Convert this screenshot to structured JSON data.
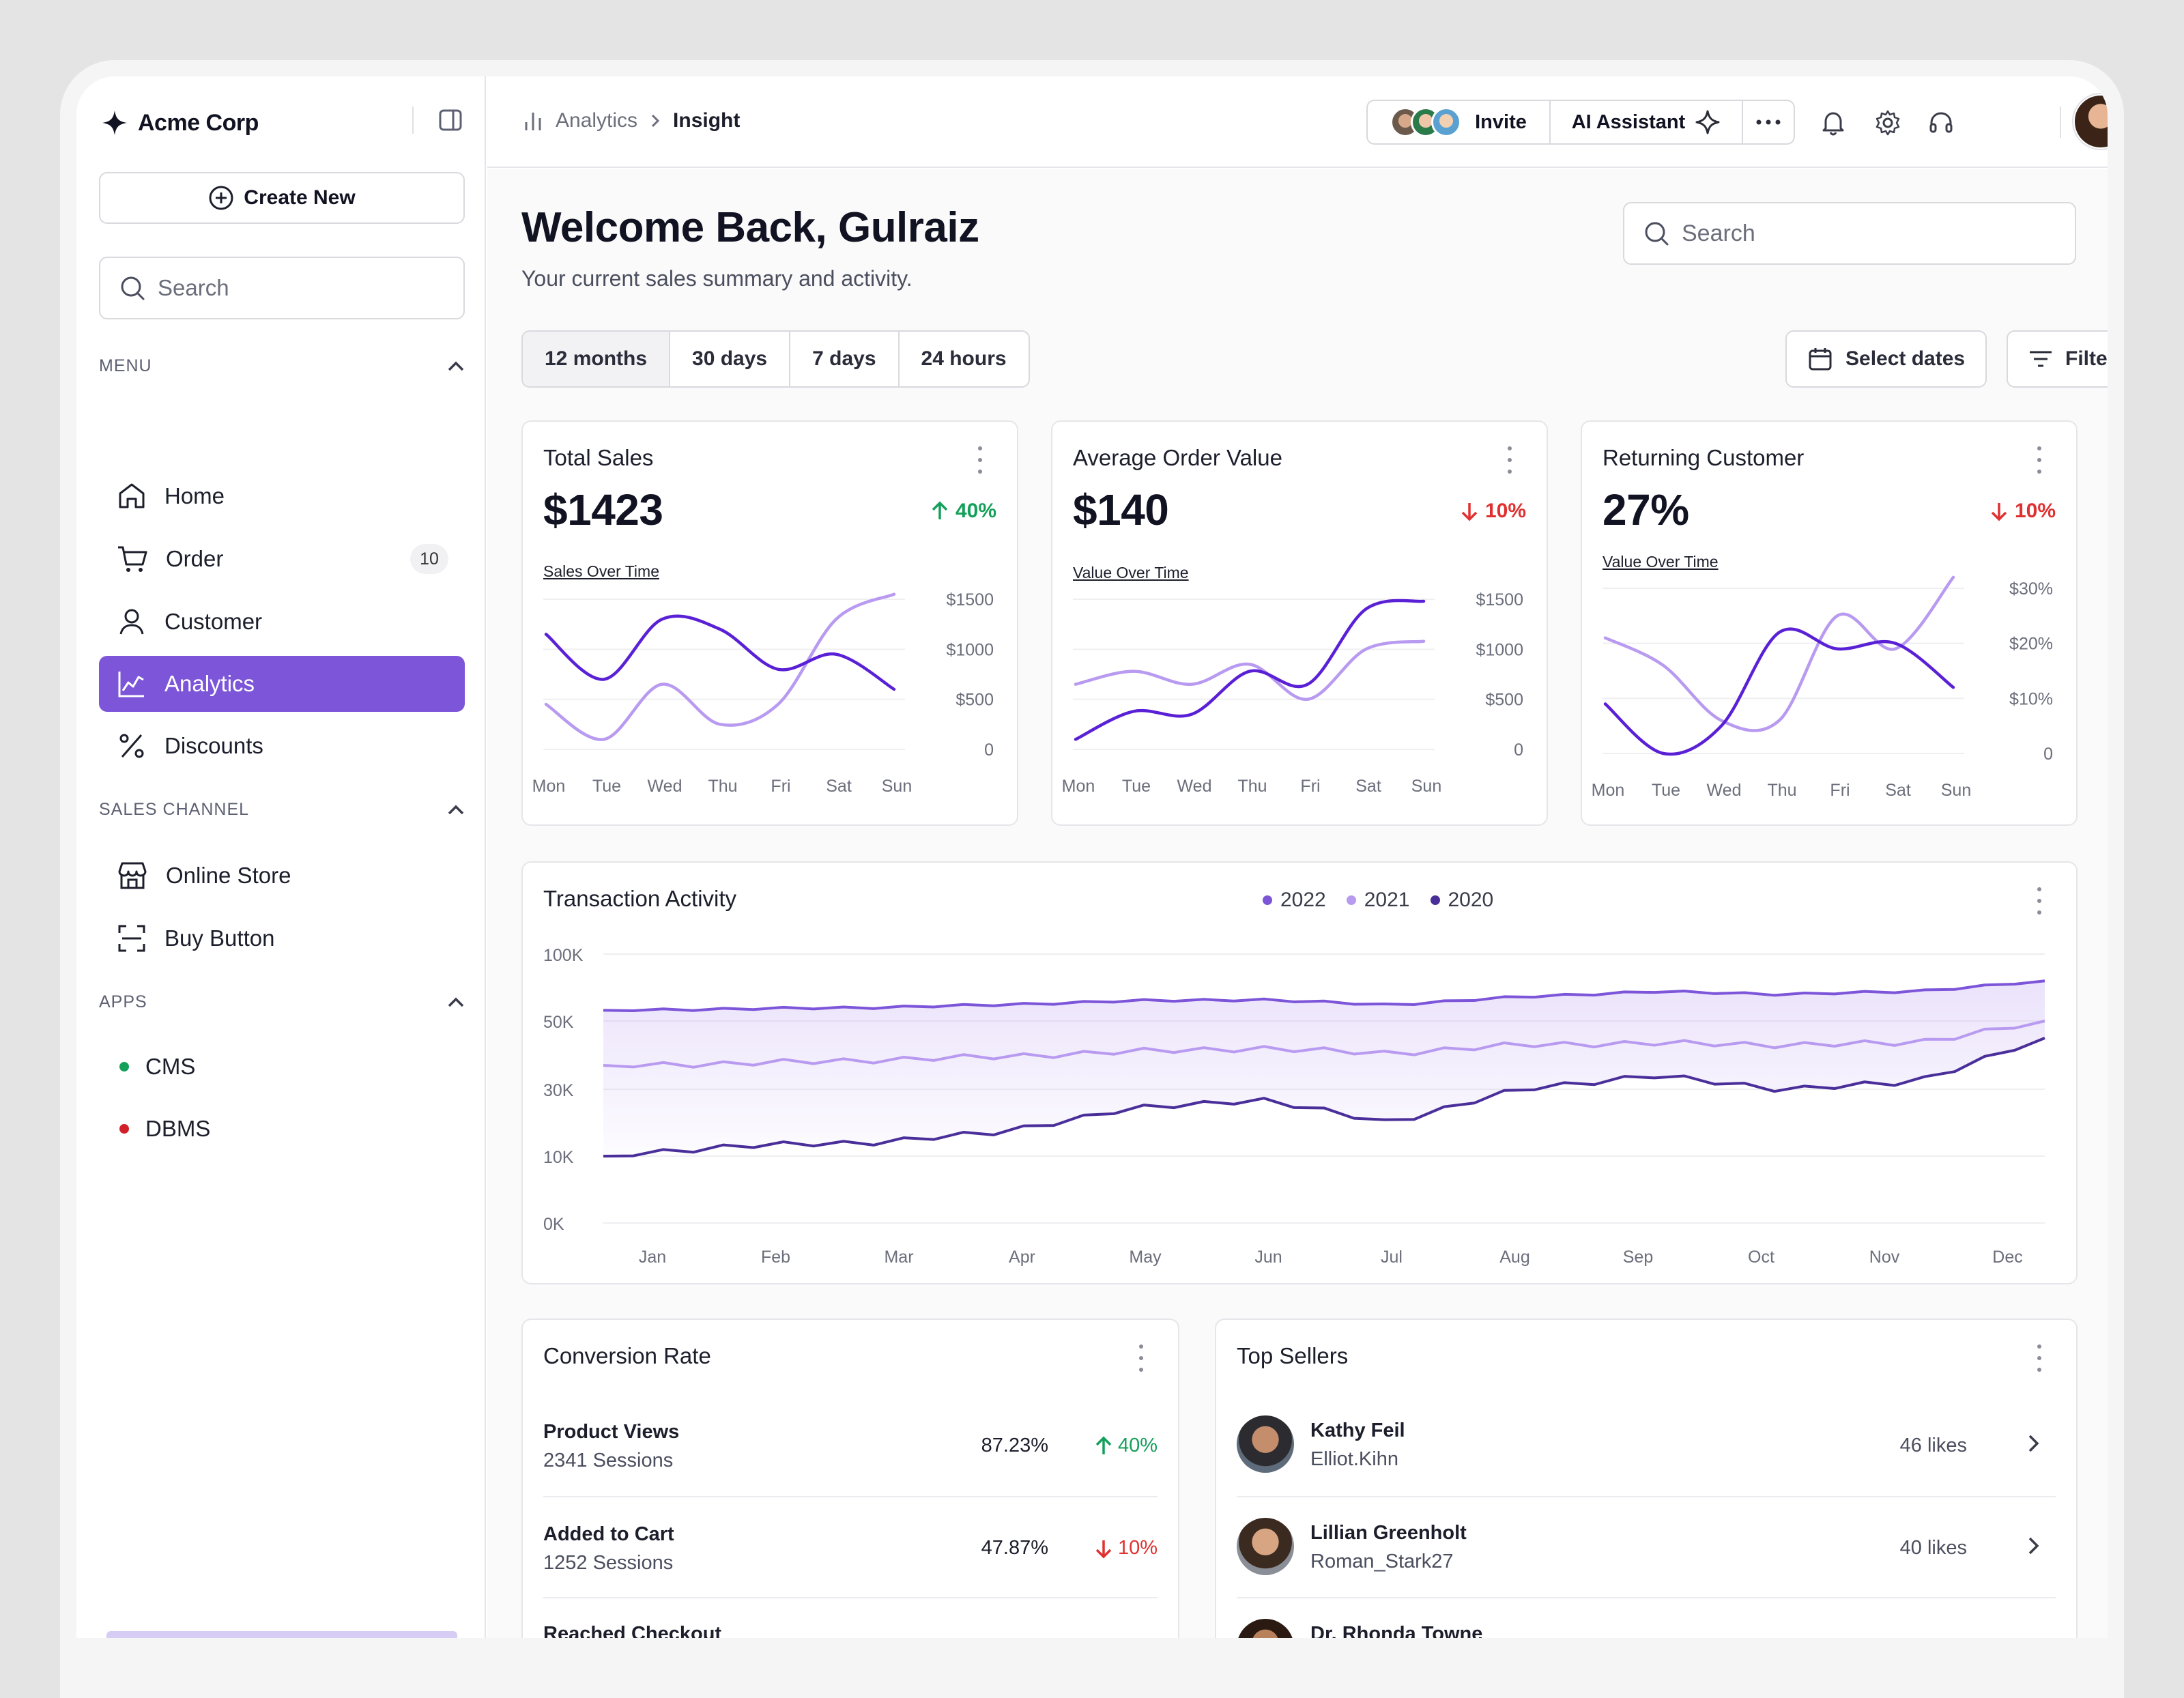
{
  "brand": {
    "name": "Acme Corp"
  },
  "sidebar": {
    "create_label": "Create New",
    "search_placeholder": "Search",
    "menu_label": "MENU",
    "menu_items": [
      {
        "label": "Home",
        "icon": "home-icon"
      },
      {
        "label": "Order",
        "icon": "cart-icon",
        "badge": "10"
      },
      {
        "label": "Customer",
        "icon": "user-icon"
      },
      {
        "label": "Analytics",
        "icon": "chart-line-icon",
        "active": true
      },
      {
        "label": "Discounts",
        "icon": "percent-icon"
      }
    ],
    "sales_channel_label": "SALES CHANNEL",
    "sales_items": [
      {
        "label": "Online Store",
        "icon": "store-icon"
      },
      {
        "label": "Buy Button",
        "icon": "scan-icon"
      }
    ],
    "apps_label": "APPS",
    "apps": [
      {
        "label": "CMS",
        "color": "#14a05a"
      },
      {
        "label": "DBMS",
        "color": "#d0202a"
      }
    ]
  },
  "topbar": {
    "breadcrumb": [
      "Analytics",
      "Insight"
    ],
    "invite_label": "Invite",
    "ai_label": "AI Assistant"
  },
  "main": {
    "welcome": "Welcome Back, Gulraiz",
    "subtitle": "Your current sales summary and activity.",
    "search_placeholder": "Search",
    "ranges": [
      "12 months",
      "30 days",
      "7 days",
      "24 hours"
    ],
    "select_dates_label": "Select dates",
    "filters_label": "Filters"
  },
  "colors": {
    "accent": "#7c55d9",
    "light": "#b89af0",
    "dark": "#5a20d6",
    "up": "#14a05a",
    "down": "#e03131"
  },
  "kpis": [
    {
      "title": "Total Sales",
      "value": "$1423",
      "change": "40%",
      "direction": "up",
      "subtitle": "Sales Over Time",
      "chart_data": {
        "type": "line",
        "categories": [
          "Mon",
          "Tue",
          "Wed",
          "Thu",
          "Fri",
          "Sat",
          "Sun"
        ],
        "yticks": [
          "$1500",
          "$1000",
          "$500",
          "0"
        ],
        "ylim": [
          0,
          1500
        ],
        "series": [
          {
            "values": [
              1150,
              700,
              1300,
              1200,
              800,
              950,
              600
            ]
          },
          {
            "values": [
              450,
              100,
              650,
              250,
              450,
              1300,
              1550
            ]
          }
        ]
      }
    },
    {
      "title": "Average Order Value",
      "value": "$140",
      "change": "10%",
      "direction": "down",
      "subtitle": "Value Over Time",
      "chart_data": {
        "type": "line",
        "categories": [
          "Mon",
          "Tue",
          "Wed",
          "Thu",
          "Fri",
          "Sat",
          "Sun"
        ],
        "yticks": [
          "$1500",
          "$1000",
          "$500",
          "0"
        ],
        "ylim": [
          0,
          1500
        ],
        "series": [
          {
            "values": [
              100,
              380,
              350,
              780,
              650,
              1400,
              1480
            ]
          },
          {
            "values": [
              650,
              780,
              650,
              850,
              500,
              1000,
              1080
            ]
          }
        ]
      }
    },
    {
      "title": "Returning Customer",
      "value": "27%",
      "change": "10%",
      "direction": "down",
      "subtitle": "Value Over Time",
      "chart_data": {
        "type": "line",
        "categories": [
          "Mon",
          "Tue",
          "Wed",
          "Thu",
          "Fri",
          "Sat",
          "Sun"
        ],
        "yticks": [
          "$30%",
          "$20%",
          "$10%",
          "0"
        ],
        "ylim": [
          0,
          30
        ],
        "series": [
          {
            "values": [
              9,
              0,
              5,
              22,
              19,
              20,
              12
            ]
          },
          {
            "values": [
              21,
              16,
              6,
              6,
              25,
              19,
              32
            ]
          }
        ]
      }
    }
  ],
  "transactions": {
    "title": "Transaction Activity",
    "chart_data": {
      "type": "area",
      "categories": [
        "Jan",
        "Feb",
        "Mar",
        "Apr",
        "May",
        "Jun",
        "Jul",
        "Aug",
        "Sep",
        "Oct",
        "Nov",
        "Dec"
      ],
      "yticks": [
        "100K",
        "50K",
        "30K",
        "10K",
        "0K"
      ],
      "series": [
        {
          "name": "2022",
          "color": "#7c55d9",
          "values": [
            58,
            59,
            60,
            62,
            65,
            66,
            62,
            68,
            72,
            70,
            72,
            80
          ]
        },
        {
          "name": "2021",
          "color": "#b89af0",
          "values": [
            37,
            37.5,
            38.5,
            39.5,
            41,
            42,
            40.5,
            43,
            43.5,
            43,
            43.5,
            50
          ]
        },
        {
          "name": "2020",
          "color": "#4a2f9a",
          "values": [
            10,
            13,
            14,
            17,
            24,
            27,
            20,
            30,
            34,
            30,
            32,
            45
          ]
        }
      ]
    }
  },
  "conversion": {
    "title": "Conversion Rate",
    "rows": [
      {
        "label": "Product Views",
        "sessions": "2341 Sessions",
        "pct": "87.23%",
        "change": "40%",
        "direction": "up"
      },
      {
        "label": "Added to Cart",
        "sessions": "1252 Sessions",
        "pct": "47.87%",
        "change": "10%",
        "direction": "down"
      },
      {
        "label": "Reached Checkout"
      }
    ]
  },
  "top_sellers": {
    "title": "Top Sellers",
    "rows": [
      {
        "name": "Kathy Feil",
        "handle": "Elliot.Kihn",
        "likes": "46 likes"
      },
      {
        "name": "Lillian Greenholt",
        "handle": "Roman_Stark27",
        "likes": "40 likes"
      },
      {
        "name": "Dr. Rhonda Towne"
      }
    ]
  }
}
